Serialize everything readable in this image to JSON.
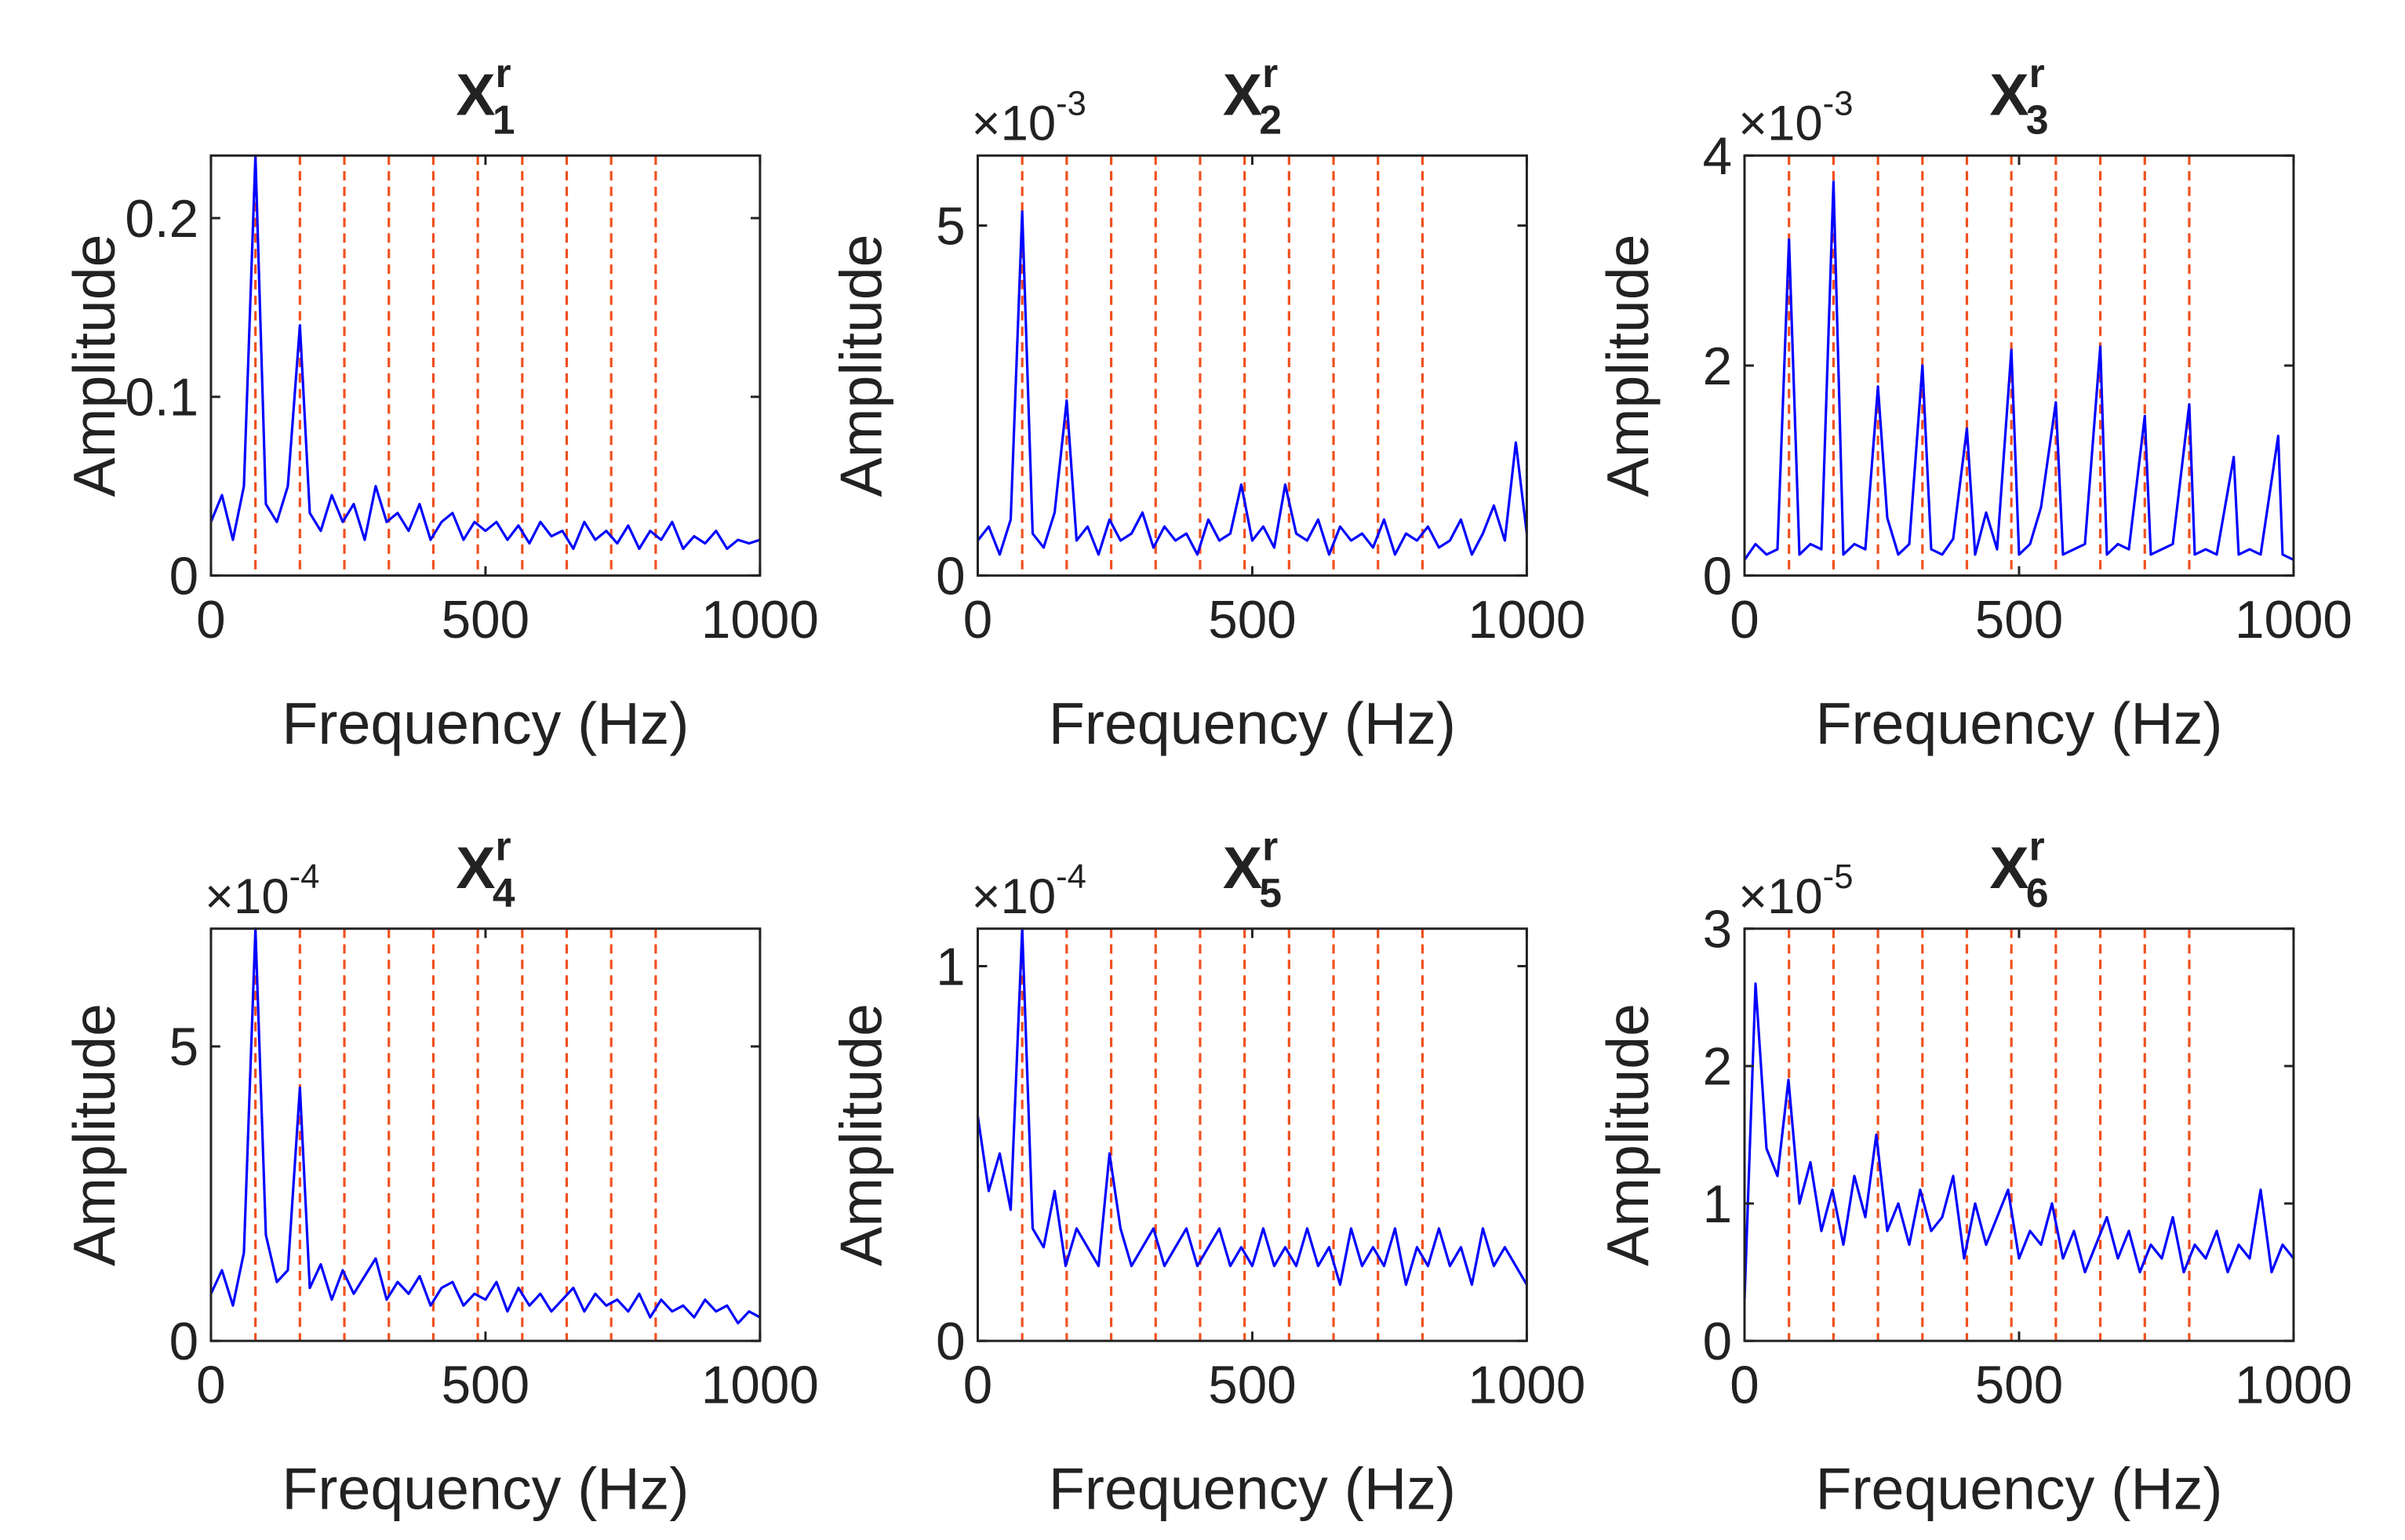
{
  "chart_data": [
    {
      "type": "line",
      "title": {
        "base": "X",
        "sup": "r",
        "sub": "1"
      },
      "xlabel": "Frequency (Hz)",
      "ylabel": "Amplitude",
      "xlim": [
        0,
        1000
      ],
      "xticks": [
        0,
        500,
        1000
      ],
      "ylim": [
        0,
        0.235
      ],
      "yticks": [
        0,
        0.1,
        0.2
      ],
      "vlines": [
        81,
        162,
        243,
        324,
        405,
        486,
        567,
        648,
        729,
        810
      ],
      "vline_color": "#f0501e",
      "color": "#0000ff",
      "x": [
        0,
        20,
        40,
        60,
        81,
        100,
        120,
        140,
        162,
        180,
        200,
        220,
        240,
        260,
        280,
        300,
        320,
        340,
        360,
        380,
        400,
        420,
        440,
        460,
        480,
        500,
        520,
        540,
        560,
        580,
        600,
        620,
        640,
        660,
        680,
        700,
        720,
        740,
        760,
        780,
        800,
        820,
        840,
        860,
        880,
        900,
        920,
        940,
        960,
        980,
        1000
      ],
      "values": [
        0.03,
        0.045,
        0.02,
        0.05,
        0.235,
        0.04,
        0.03,
        0.05,
        0.14,
        0.035,
        0.025,
        0.045,
        0.03,
        0.04,
        0.02,
        0.05,
        0.03,
        0.035,
        0.025,
        0.04,
        0.02,
        0.03,
        0.035,
        0.02,
        0.03,
        0.025,
        0.03,
        0.02,
        0.028,
        0.018,
        0.03,
        0.022,
        0.025,
        0.015,
        0.03,
        0.02,
        0.025,
        0.018,
        0.028,
        0.015,
        0.025,
        0.02,
        0.03,
        0.015,
        0.022,
        0.018,
        0.025,
        0.015,
        0.02,
        0.018,
        0.02
      ]
    },
    {
      "type": "line",
      "title": {
        "base": "X",
        "sup": "r",
        "sub": "2"
      },
      "exponent": {
        "base": "×10",
        "power": "-3"
      },
      "xlabel": "Frequency (Hz)",
      "ylabel": "Amplitude",
      "xlim": [
        0,
        1000
      ],
      "xticks": [
        0,
        500,
        1000
      ],
      "ylim": [
        0,
        6
      ],
      "yticks": [
        0,
        5
      ],
      "vlines": [
        81,
        162,
        243,
        324,
        405,
        486,
        567,
        648,
        729,
        810
      ],
      "vline_color": "#f0501e",
      "color": "#0000ff",
      "x": [
        0,
        20,
        40,
        60,
        81,
        100,
        120,
        140,
        162,
        180,
        200,
        220,
        240,
        260,
        280,
        300,
        320,
        340,
        360,
        380,
        400,
        420,
        440,
        460,
        480,
        500,
        520,
        540,
        560,
        580,
        600,
        620,
        640,
        660,
        680,
        700,
        720,
        740,
        760,
        780,
        800,
        820,
        840,
        860,
        880,
        900,
        920,
        940,
        960,
        980,
        1000
      ],
      "values": [
        0.5,
        0.7,
        0.3,
        0.8,
        5.2,
        0.6,
        0.4,
        0.9,
        2.5,
        0.5,
        0.7,
        0.3,
        0.8,
        0.5,
        0.6,
        0.9,
        0.4,
        0.7,
        0.5,
        0.6,
        0.3,
        0.8,
        0.5,
        0.6,
        1.3,
        0.5,
        0.7,
        0.4,
        1.3,
        0.6,
        0.5,
        0.8,
        0.3,
        0.7,
        0.5,
        0.6,
        0.4,
        0.8,
        0.3,
        0.6,
        0.5,
        0.7,
        0.4,
        0.5,
        0.8,
        0.3,
        0.6,
        1.0,
        0.5,
        1.9,
        0.6
      ]
    },
    {
      "type": "line",
      "title": {
        "base": "X",
        "sup": "r",
        "sub": "3"
      },
      "exponent": {
        "base": "×10",
        "power": "-3"
      },
      "xlabel": "Frequency (Hz)",
      "ylabel": "Amplitude",
      "xlim": [
        0,
        1000
      ],
      "xticks": [
        0,
        500,
        1000
      ],
      "ylim": [
        0,
        4
      ],
      "yticks": [
        0,
        2,
        4
      ],
      "vlines": [
        81,
        162,
        243,
        324,
        405,
        486,
        567,
        648,
        729,
        810
      ],
      "vline_color": "#f0501e",
      "color": "#0000ff",
      "x": [
        0,
        20,
        40,
        60,
        81,
        100,
        120,
        140,
        162,
        180,
        200,
        220,
        243,
        260,
        280,
        300,
        324,
        340,
        360,
        380,
        405,
        420,
        440,
        460,
        486,
        500,
        520,
        540,
        567,
        580,
        600,
        620,
        648,
        660,
        680,
        700,
        729,
        740,
        760,
        780,
        810,
        820,
        840,
        860,
        891,
        900,
        920,
        940,
        972,
        980,
        1000
      ],
      "values": [
        0.15,
        0.3,
        0.2,
        0.25,
        3.2,
        0.2,
        0.3,
        0.25,
        3.75,
        0.2,
        0.3,
        0.25,
        1.8,
        0.55,
        0.2,
        0.3,
        2.0,
        0.25,
        0.2,
        0.35,
        1.4,
        0.2,
        0.6,
        0.25,
        2.15,
        0.2,
        0.3,
        0.65,
        1.65,
        0.2,
        0.25,
        0.3,
        2.18,
        0.2,
        0.3,
        0.25,
        1.52,
        0.2,
        0.25,
        0.3,
        1.63,
        0.2,
        0.25,
        0.2,
        1.13,
        0.2,
        0.25,
        0.2,
        1.33,
        0.2,
        0.15
      ]
    },
    {
      "type": "line",
      "title": {
        "base": "X",
        "sup": "r",
        "sub": "4"
      },
      "exponent": {
        "base": "×10",
        "power": "-4"
      },
      "xlabel": "Frequency (Hz)",
      "ylabel": "Amplitude",
      "xlim": [
        0,
        1000
      ],
      "xticks": [
        0,
        500,
        1000
      ],
      "ylim": [
        0,
        7
      ],
      "yticks": [
        0,
        5
      ],
      "vlines": [
        81,
        162,
        243,
        324,
        405,
        486,
        567,
        648,
        729,
        810
      ],
      "vline_color": "#f0501e",
      "color": "#0000ff",
      "x": [
        0,
        20,
        40,
        60,
        81,
        100,
        120,
        140,
        162,
        180,
        200,
        220,
        240,
        260,
        280,
        300,
        320,
        340,
        360,
        380,
        400,
        420,
        440,
        460,
        480,
        500,
        520,
        540,
        560,
        580,
        600,
        620,
        640,
        660,
        680,
        700,
        720,
        740,
        760,
        780,
        800,
        820,
        840,
        860,
        880,
        900,
        920,
        940,
        960,
        980,
        1000
      ],
      "values": [
        0.8,
        1.2,
        0.6,
        1.5,
        7.0,
        1.8,
        1.0,
        1.2,
        4.3,
        0.9,
        1.3,
        0.7,
        1.2,
        0.8,
        1.1,
        1.4,
        0.7,
        1.0,
        0.8,
        1.1,
        0.6,
        0.9,
        1.0,
        0.6,
        0.8,
        0.7,
        1.0,
        0.5,
        0.9,
        0.6,
        0.8,
        0.5,
        0.7,
        0.9,
        0.5,
        0.8,
        0.6,
        0.7,
        0.5,
        0.8,
        0.4,
        0.7,
        0.5,
        0.6,
        0.4,
        0.7,
        0.5,
        0.6,
        0.3,
        0.5,
        0.4
      ]
    },
    {
      "type": "line",
      "title": {
        "base": "X",
        "sup": "r",
        "sub": "5"
      },
      "exponent": {
        "base": "×10",
        "power": "-4"
      },
      "xlabel": "Frequency (Hz)",
      "ylabel": "Amplitude",
      "xlim": [
        0,
        1000
      ],
      "xticks": [
        0,
        500,
        1000
      ],
      "ylim": [
        0,
        1.1
      ],
      "yticks": [
        0,
        1
      ],
      "vlines": [
        81,
        162,
        243,
        324,
        405,
        486,
        567,
        648,
        729,
        810
      ],
      "vline_color": "#f0501e",
      "color": "#0000ff",
      "x": [
        0,
        20,
        40,
        60,
        81,
        100,
        120,
        140,
        160,
        180,
        200,
        220,
        240,
        260,
        280,
        300,
        320,
        340,
        360,
        380,
        400,
        420,
        440,
        460,
        480,
        500,
        520,
        540,
        560,
        580,
        600,
        620,
        640,
        660,
        680,
        700,
        720,
        740,
        760,
        780,
        800,
        820,
        840,
        860,
        880,
        900,
        920,
        940,
        960,
        980,
        1000
      ],
      "values": [
        0.6,
        0.4,
        0.5,
        0.35,
        1.1,
        0.3,
        0.25,
        0.4,
        0.2,
        0.3,
        0.25,
        0.2,
        0.5,
        0.3,
        0.2,
        0.25,
        0.3,
        0.2,
        0.25,
        0.3,
        0.2,
        0.25,
        0.3,
        0.2,
        0.25,
        0.2,
        0.3,
        0.2,
        0.25,
        0.2,
        0.3,
        0.2,
        0.25,
        0.15,
        0.3,
        0.2,
        0.25,
        0.2,
        0.3,
        0.15,
        0.25,
        0.2,
        0.3,
        0.2,
        0.25,
        0.15,
        0.3,
        0.2,
        0.25,
        0.2,
        0.15
      ]
    },
    {
      "type": "line",
      "title": {
        "base": "X",
        "sup": "r",
        "sub": "6"
      },
      "exponent": {
        "base": "×10",
        "power": "-5"
      },
      "xlabel": "Frequency (Hz)",
      "ylabel": "Amplitude",
      "xlim": [
        0,
        1000
      ],
      "xticks": [
        0,
        500,
        1000
      ],
      "ylim": [
        0,
        3
      ],
      "yticks": [
        0,
        1,
        2,
        3
      ],
      "vlines": [
        81,
        162,
        243,
        324,
        405,
        486,
        567,
        648,
        729,
        810
      ],
      "vline_color": "#f0501e",
      "color": "#0000ff",
      "x": [
        0,
        20,
        40,
        60,
        80,
        100,
        120,
        140,
        160,
        180,
        200,
        220,
        240,
        260,
        280,
        300,
        320,
        340,
        360,
        380,
        400,
        420,
        440,
        460,
        480,
        500,
        520,
        540,
        560,
        580,
        600,
        620,
        640,
        660,
        680,
        700,
        720,
        740,
        760,
        780,
        800,
        820,
        840,
        860,
        880,
        900,
        920,
        940,
        960,
        980,
        1000
      ],
      "values": [
        0.3,
        2.6,
        1.4,
        1.2,
        1.9,
        1.0,
        1.3,
        0.8,
        1.1,
        0.7,
        1.2,
        0.9,
        1.5,
        0.8,
        1.0,
        0.7,
        1.1,
        0.8,
        0.9,
        1.2,
        0.6,
        1.0,
        0.7,
        0.9,
        1.1,
        0.6,
        0.8,
        0.7,
        1.0,
        0.6,
        0.8,
        0.5,
        0.7,
        0.9,
        0.6,
        0.8,
        0.5,
        0.7,
        0.6,
        0.9,
        0.5,
        0.7,
        0.6,
        0.8,
        0.5,
        0.7,
        0.6,
        1.1,
        0.5,
        0.7,
        0.6
      ]
    }
  ]
}
